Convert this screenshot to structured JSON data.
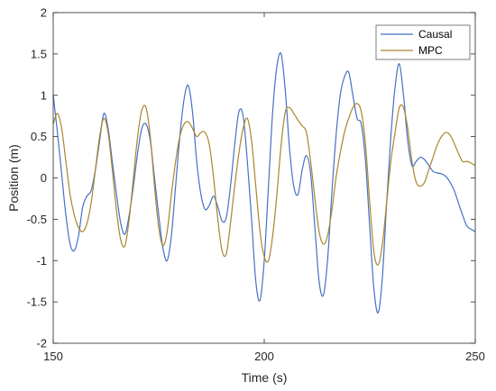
{
  "chart_data": {
    "type": "line",
    "xlabel": "Time (s)",
    "ylabel": "Position (m)",
    "xlim": [
      150,
      250
    ],
    "ylim": [
      -2,
      2
    ],
    "xticks": [
      150,
      200,
      250
    ],
    "yticks": [
      -2,
      -1.5,
      -1,
      -0.5,
      0,
      0.5,
      1,
      1.5,
      2
    ],
    "xtick_labels": [
      "150",
      "200",
      "250"
    ],
    "ytick_labels": [
      "-2",
      "-1.5",
      "-1",
      "-0.5",
      "0",
      "0.5",
      "1",
      "1.5",
      "2"
    ],
    "grid": false,
    "legend_position": "top-right",
    "series": [
      {
        "name": "Causal",
        "color": "#4472C4",
        "points": [
          [
            150,
            1.0
          ],
          [
            151,
            0.55
          ],
          [
            152,
            0.05
          ],
          [
            153,
            -0.45
          ],
          [
            154,
            -0.8
          ],
          [
            155,
            -0.88
          ],
          [
            156,
            -0.7
          ],
          [
            157,
            -0.35
          ],
          [
            158,
            -0.22
          ],
          [
            159,
            -0.15
          ],
          [
            160,
            0.1
          ],
          [
            161,
            0.45
          ],
          [
            162,
            0.78
          ],
          [
            163,
            0.6
          ],
          [
            164,
            0.2
          ],
          [
            165,
            -0.2
          ],
          [
            166,
            -0.55
          ],
          [
            167,
            -0.68
          ],
          [
            168,
            -0.45
          ],
          [
            169,
            -0.1
          ],
          [
            170,
            0.3
          ],
          [
            171,
            0.6
          ],
          [
            172,
            0.65
          ],
          [
            173,
            0.45
          ],
          [
            174,
            0.0
          ],
          [
            175,
            -0.45
          ],
          [
            176,
            -0.85
          ],
          [
            177,
            -1.0
          ],
          [
            178,
            -0.7
          ],
          [
            179,
            -0.1
          ],
          [
            180,
            0.5
          ],
          [
            181,
            0.95
          ],
          [
            182,
            1.12
          ],
          [
            183,
            0.8
          ],
          [
            184,
            0.2
          ],
          [
            185,
            -0.2
          ],
          [
            186,
            -0.38
          ],
          [
            187,
            -0.33
          ],
          [
            188,
            -0.22
          ],
          [
            189,
            -0.35
          ],
          [
            190,
            -0.52
          ],
          [
            191,
            -0.48
          ],
          [
            192,
            -0.1
          ],
          [
            193,
            0.4
          ],
          [
            194,
            0.8
          ],
          [
            195,
            0.75
          ],
          [
            196,
            0.2
          ],
          [
            197,
            -0.5
          ],
          [
            198,
            -1.25
          ],
          [
            199,
            -1.48
          ],
          [
            200,
            -1.0
          ],
          [
            201,
            -0.1
          ],
          [
            202,
            0.8
          ],
          [
            203,
            1.35
          ],
          [
            204,
            1.5
          ],
          [
            205,
            1.05
          ],
          [
            206,
            0.35
          ],
          [
            207,
            -0.1
          ],
          [
            208,
            -0.2
          ],
          [
            209,
            0.1
          ],
          [
            210,
            0.27
          ],
          [
            211,
            0.05
          ],
          [
            212,
            -0.6
          ],
          [
            213,
            -1.25
          ],
          [
            214,
            -1.42
          ],
          [
            215,
            -1.0
          ],
          [
            216,
            -0.2
          ],
          [
            217,
            0.5
          ],
          [
            218,
            1.0
          ],
          [
            219,
            1.22
          ],
          [
            220,
            1.28
          ],
          [
            221,
            1.0
          ],
          [
            222,
            0.72
          ],
          [
            223,
            0.65
          ],
          [
            224,
            0.2
          ],
          [
            225,
            -0.6
          ],
          [
            226,
            -1.35
          ],
          [
            227,
            -1.63
          ],
          [
            228,
            -1.2
          ],
          [
            229,
            -0.3
          ],
          [
            230,
            0.5
          ],
          [
            231,
            1.1
          ],
          [
            232,
            1.38
          ],
          [
            233,
            1.0
          ],
          [
            234,
            0.45
          ],
          [
            235,
            0.15
          ],
          [
            236,
            0.2
          ],
          [
            237,
            0.25
          ],
          [
            238,
            0.22
          ],
          [
            239,
            0.15
          ],
          [
            240,
            0.08
          ],
          [
            241,
            0.06
          ],
          [
            242,
            0.05
          ],
          [
            243,
            0.02
          ],
          [
            244,
            -0.05
          ],
          [
            245,
            -0.15
          ],
          [
            246,
            -0.3
          ],
          [
            247,
            -0.45
          ],
          [
            248,
            -0.58
          ],
          [
            249,
            -0.62
          ],
          [
            250,
            -0.65
          ]
        ]
      },
      {
        "name": "MPC",
        "color": "#A8862E",
        "points": [
          [
            150,
            0.65
          ],
          [
            151,
            0.78
          ],
          [
            152,
            0.6
          ],
          [
            153,
            0.2
          ],
          [
            154,
            -0.2
          ],
          [
            155,
            -0.45
          ],
          [
            156,
            -0.6
          ],
          [
            157,
            -0.65
          ],
          [
            158,
            -0.55
          ],
          [
            159,
            -0.3
          ],
          [
            160,
            0.1
          ],
          [
            161,
            0.5
          ],
          [
            162,
            0.72
          ],
          [
            163,
            0.55
          ],
          [
            164,
            0.1
          ],
          [
            165,
            -0.4
          ],
          [
            166,
            -0.75
          ],
          [
            167,
            -0.82
          ],
          [
            168,
            -0.5
          ],
          [
            169,
            0.0
          ],
          [
            170,
            0.5
          ],
          [
            171,
            0.82
          ],
          [
            172,
            0.85
          ],
          [
            173,
            0.5
          ],
          [
            174,
            -0.1
          ],
          [
            175,
            -0.6
          ],
          [
            176,
            -0.82
          ],
          [
            177,
            -0.65
          ],
          [
            178,
            -0.2
          ],
          [
            179,
            0.2
          ],
          [
            180,
            0.5
          ],
          [
            181,
            0.65
          ],
          [
            182,
            0.68
          ],
          [
            183,
            0.6
          ],
          [
            184,
            0.5
          ],
          [
            185,
            0.55
          ],
          [
            186,
            0.55
          ],
          [
            187,
            0.4
          ],
          [
            188,
            0.0
          ],
          [
            189,
            -0.5
          ],
          [
            190,
            -0.88
          ],
          [
            191,
            -0.92
          ],
          [
            192,
            -0.55
          ],
          [
            193,
            -0.1
          ],
          [
            194,
            0.3
          ],
          [
            195,
            0.6
          ],
          [
            196,
            0.72
          ],
          [
            197,
            0.45
          ],
          [
            198,
            -0.1
          ],
          [
            199,
            -0.65
          ],
          [
            200,
            -0.95
          ],
          [
            201,
            -1.0
          ],
          [
            202,
            -0.7
          ],
          [
            203,
            -0.2
          ],
          [
            204,
            0.4
          ],
          [
            205,
            0.8
          ],
          [
            206,
            0.85
          ],
          [
            207,
            0.78
          ],
          [
            208,
            0.7
          ],
          [
            209,
            0.63
          ],
          [
            210,
            0.55
          ],
          [
            211,
            0.2
          ],
          [
            212,
            -0.25
          ],
          [
            213,
            -0.65
          ],
          [
            214,
            -0.8
          ],
          [
            215,
            -0.7
          ],
          [
            216,
            -0.4
          ],
          [
            217,
            0.0
          ],
          [
            218,
            0.3
          ],
          [
            219,
            0.55
          ],
          [
            220,
            0.72
          ],
          [
            221,
            0.85
          ],
          [
            222,
            0.9
          ],
          [
            223,
            0.8
          ],
          [
            224,
            0.4
          ],
          [
            225,
            -0.3
          ],
          [
            226,
            -0.9
          ],
          [
            227,
            -1.05
          ],
          [
            228,
            -0.8
          ],
          [
            229,
            -0.3
          ],
          [
            230,
            0.2
          ],
          [
            231,
            0.55
          ],
          [
            232,
            0.85
          ],
          [
            233,
            0.85
          ],
          [
            234,
            0.6
          ],
          [
            235,
            0.2
          ],
          [
            236,
            -0.05
          ],
          [
            237,
            -0.1
          ],
          [
            238,
            -0.05
          ],
          [
            239,
            0.1
          ],
          [
            240,
            0.25
          ],
          [
            241,
            0.4
          ],
          [
            242,
            0.5
          ],
          [
            243,
            0.55
          ],
          [
            244,
            0.52
          ],
          [
            245,
            0.42
          ],
          [
            246,
            0.3
          ],
          [
            247,
            0.2
          ],
          [
            248,
            0.2
          ],
          [
            249,
            0.18
          ],
          [
            250,
            0.15
          ]
        ]
      }
    ]
  }
}
